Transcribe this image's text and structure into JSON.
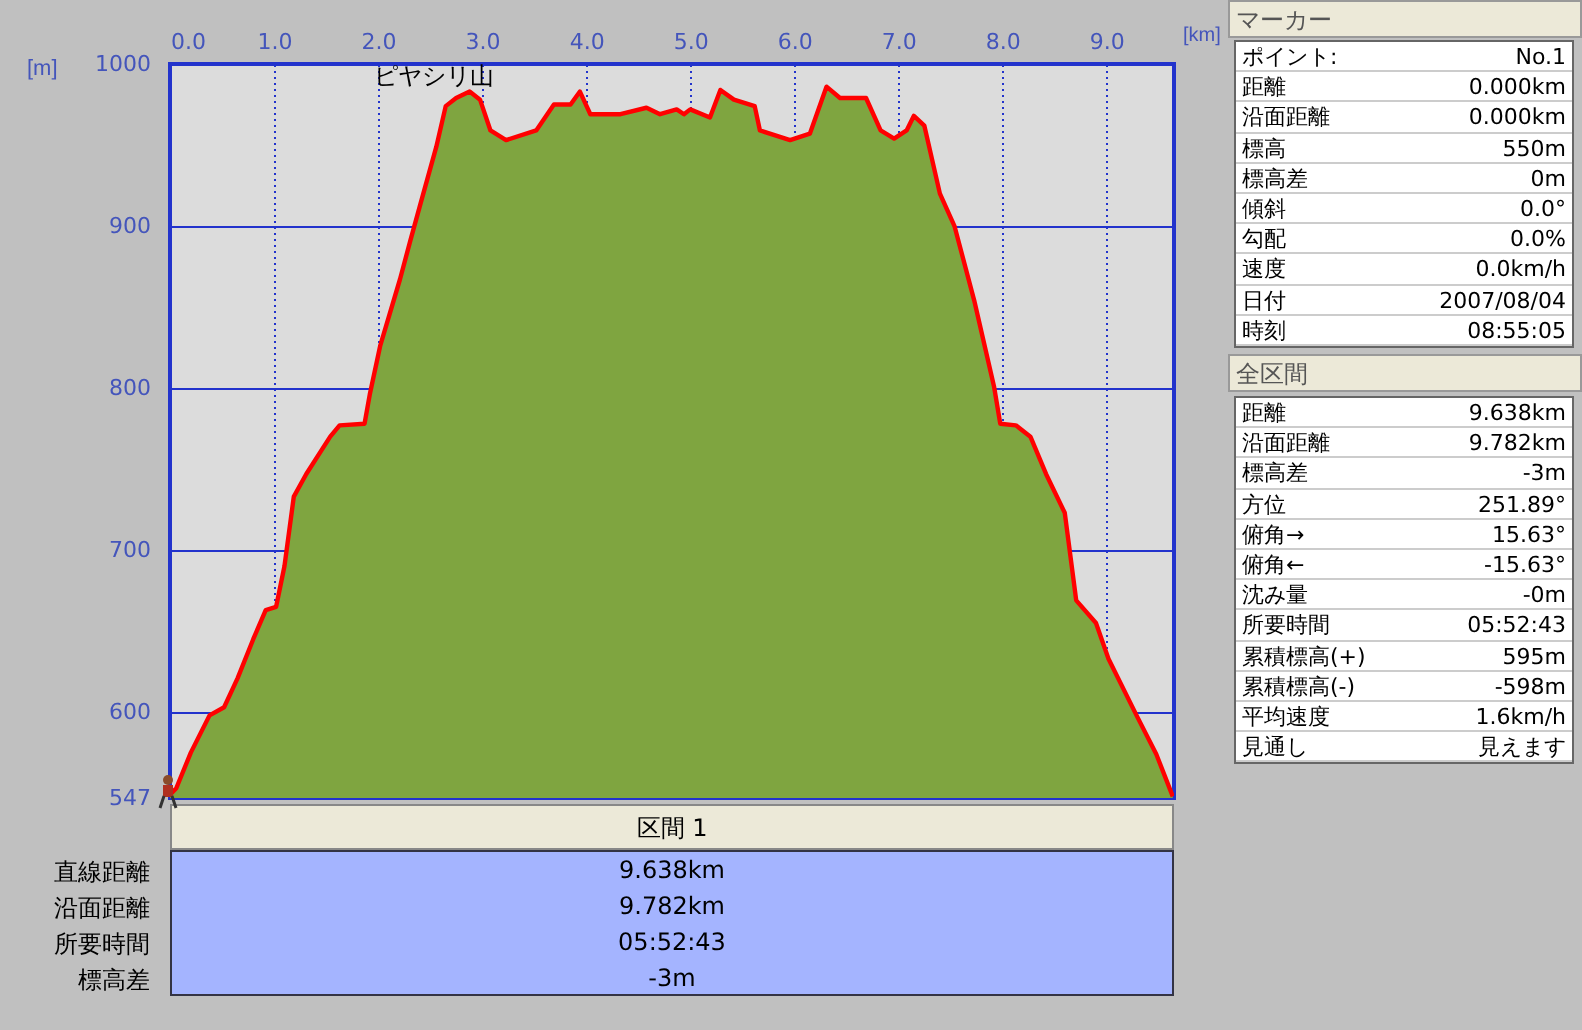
{
  "chart_data": {
    "type": "area",
    "xlabel": "[km]",
    "ylabel": "[m]",
    "xlim": [
      0,
      9.65
    ],
    "xticks": [
      {
        "value": 0,
        "label": "0.0"
      },
      {
        "value": 1,
        "label": "1.0"
      },
      {
        "value": 2,
        "label": "2.0"
      },
      {
        "value": 3,
        "label": "3.0"
      },
      {
        "value": 4,
        "label": "4.0"
      },
      {
        "value": 5,
        "label": "5.0"
      },
      {
        "value": 6,
        "label": "6.0"
      },
      {
        "value": 7,
        "label": "7.0"
      },
      {
        "value": 8,
        "label": "8.0"
      },
      {
        "value": 9,
        "label": "9.0"
      }
    ],
    "ylim": [
      547,
      1000
    ],
    "yticks": [
      547,
      600,
      700,
      800,
      900,
      1000
    ],
    "grid": true,
    "x": [
      0,
      0.06,
      0.2,
      0.38,
      0.52,
      0.65,
      0.8,
      0.92,
      1.02,
      1.1,
      1.19,
      1.31,
      1.54,
      1.63,
      1.87,
      1.92,
      2.02,
      2.21,
      2.31,
      2.4,
      2.56,
      2.65,
      2.75,
      2.88,
      2.98,
      3.08,
      3.23,
      3.52,
      3.69,
      3.85,
      3.94,
      4.04,
      4.33,
      4.58,
      4.71,
      4.87,
      4.94,
      5.0,
      5.19,
      5.29,
      5.42,
      5.62,
      5.67,
      5.96,
      6.15,
      6.31,
      6.44,
      6.69,
      6.83,
      6.96,
      7.08,
      7.15,
      7.25,
      7.4,
      7.54,
      7.73,
      7.92,
      7.98,
      8.13,
      8.27,
      8.42,
      8.6,
      8.71,
      8.9,
      9.02,
      9.29,
      9.48,
      9.638
    ],
    "series": [
      {
        "color": "#7fa540",
        "values": [
          549,
          553,
          575,
          598,
          603,
          621,
          645,
          663,
          665,
          690,
          733,
          747,
          770,
          777,
          778,
          796,
          826,
          867,
          891,
          912,
          949,
          974,
          979,
          983,
          978,
          959,
          953,
          959,
          975,
          975,
          983,
          969,
          969,
          973,
          969,
          972,
          969,
          972,
          967,
          984,
          978,
          974,
          959,
          953,
          957,
          986,
          979,
          979,
          959,
          954,
          959,
          968,
          962,
          920,
          900,
          854,
          801,
          778,
          777,
          770,
          747,
          723,
          669,
          655,
          633,
          598,
          574,
          548
        ]
      }
    ],
    "annotations": [
      {
        "text": "ピヤシリ山",
        "x": 2.88,
        "y": 983
      },
      "マーカー",
      "ポイント:",
      "No.1",
      "距離",
      "0.000km",
      "沿面距離",
      "0.000km",
      "標高",
      "550m",
      "標高差",
      "0m",
      "傾斜",
      "0.0°",
      "勾配",
      "0.0%",
      "速度",
      "0.0km/h",
      "日付",
      "2007/08/04",
      "時刻",
      "08:55:05",
      "全区間",
      "距離",
      "9.638km",
      "沿面距離",
      "9.782km",
      "標高差",
      "-3m",
      "方位",
      "251.89°",
      "俯角→",
      "15.63°",
      "俯角←",
      "-15.63°",
      "沈み量",
      "-0m",
      "所要時間",
      "05:52:43",
      "累積標高(+)",
      "595m",
      "累積標高(-)",
      "-598m",
      "平均速度",
      "1.6km/h",
      "見通し",
      "見えます",
      "区間 1",
      "直線距離",
      "9.638km",
      "沿面距離",
      "9.782km",
      "所要時間",
      "05:52:43",
      "標高差",
      "-3m"
    ]
  }
}
